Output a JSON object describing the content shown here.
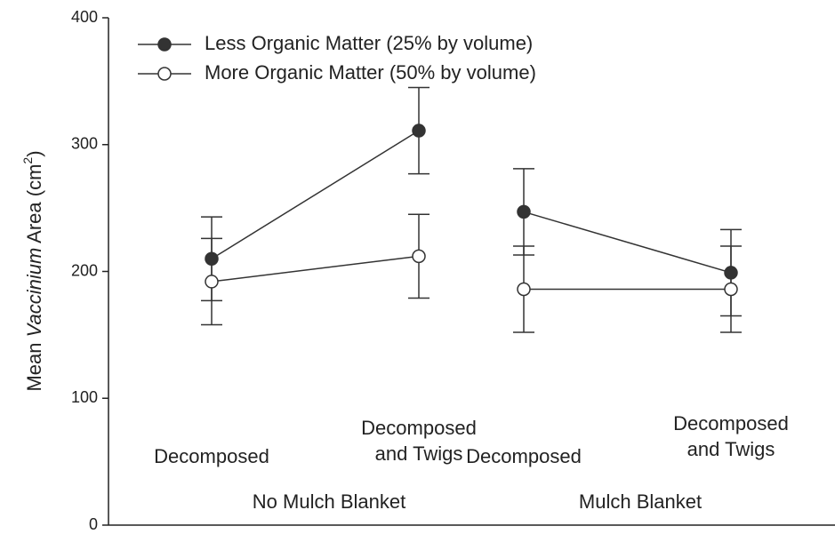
{
  "chart_data": {
    "type": "line",
    "y_label": {
      "prefix": "Mean ",
      "italic": "Vaccinium",
      "middle": " Area (cm",
      "superscript": "2",
      "suffix": ")"
    },
    "groups": [
      {
        "name": "No Mulch Blanket",
        "categories": [
          [
            "Decomposed"
          ],
          [
            "Decomposed",
            "and Twigs"
          ]
        ]
      },
      {
        "name": "Mulch Blanket",
        "categories": [
          [
            "Decomposed"
          ],
          [
            "Decomposed",
            "and Twigs"
          ]
        ]
      }
    ],
    "series": [
      {
        "name": "Less Organic Matter (25% by volume)",
        "color": "#333333",
        "filled": true,
        "values": [
          [
            210,
            311
          ],
          [
            247,
            199
          ]
        ],
        "errors": [
          [
            33,
            34
          ],
          [
            34,
            34
          ]
        ]
      },
      {
        "name": "More Organic Matter (50% by volume)",
        "color": "#ffffff",
        "filled": false,
        "values": [
          [
            192,
            212
          ],
          [
            186,
            186
          ]
        ],
        "errors": [
          [
            34,
            33
          ],
          [
            34,
            34
          ]
        ]
      }
    ],
    "ylim": [
      0,
      400
    ],
    "yticks": [
      0,
      100,
      200,
      300,
      400
    ]
  }
}
